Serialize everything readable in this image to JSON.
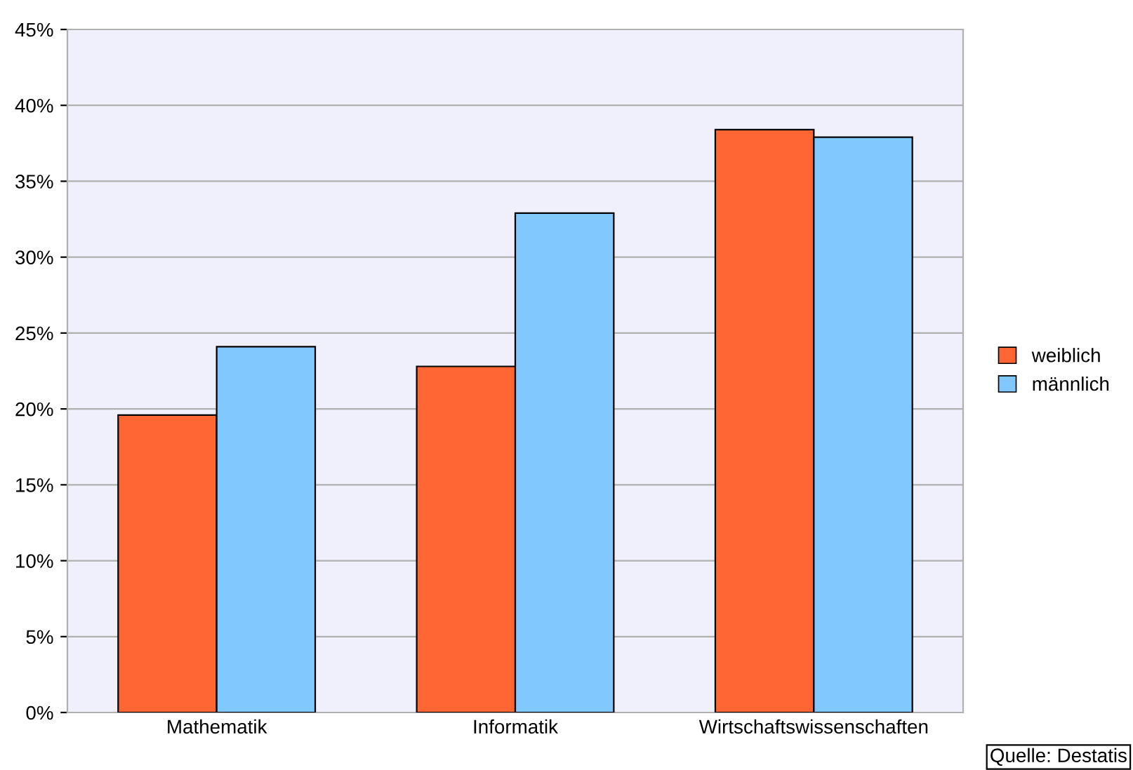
{
  "chart_data": {
    "type": "bar",
    "categories": [
      "Mathematik",
      "Informatik",
      "Wirtschaftswissenschaften"
    ],
    "series": [
      {
        "name": "weiblich",
        "color": "#ff6633",
        "values": [
          19.6,
          22.8,
          38.4
        ]
      },
      {
        "name": "männlich",
        "color": "#80c8ff",
        "values": [
          24.1,
          32.9,
          37.9
        ]
      }
    ],
    "ylim": [
      0,
      45
    ],
    "yticks": [
      {
        "value": 0,
        "label": "0%"
      },
      {
        "value": 5,
        "label": "5%"
      },
      {
        "value": 10,
        "label": "10%"
      },
      {
        "value": 15,
        "label": "15%"
      },
      {
        "value": 20,
        "label": "20%"
      },
      {
        "value": 25,
        "label": "25%"
      },
      {
        "value": 30,
        "label": "30%"
      },
      {
        "value": 35,
        "label": "35%"
      },
      {
        "value": 40,
        "label": "40%"
      },
      {
        "value": 45,
        "label": "45%"
      }
    ],
    "grid": "y",
    "legend": "right",
    "annotations": [
      "Quelle: Destatis"
    ]
  }
}
